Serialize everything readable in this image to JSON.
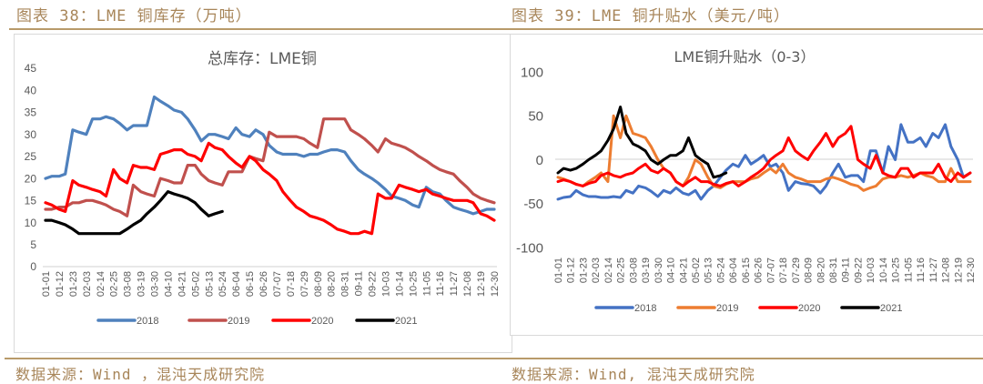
{
  "left": {
    "figure_title": "图表 38：LME 铜库存（万吨）",
    "source": "数据来源：Wind ，混沌天成研究院"
  },
  "right": {
    "figure_title": "图表 39：LME 铜升贴水（美元/吨）",
    "source": "数据来源：Wind, 混沌天成研究院"
  },
  "chart_data": [
    {
      "type": "line",
      "title": "总库存：LME铜",
      "xlabel": "",
      "ylabel": "",
      "ylim": [
        0,
        45
      ],
      "yticks": [
        "0",
        "5",
        "10",
        "15",
        "20",
        "25",
        "30",
        "35",
        "40",
        "45"
      ],
      "xticks": [
        "01-01",
        "01-12",
        "01-23",
        "02-03",
        "02-14",
        "02-25",
        "03-08",
        "03-19",
        "03-30",
        "04-10",
        "04-21",
        "05-02",
        "05-13",
        "05-24",
        "06-04",
        "06-15",
        "06-26",
        "07-07",
        "07-18",
        "07-29",
        "08-09",
        "08-20",
        "08-31",
        "09-11",
        "09-22",
        "10-03",
        "10-14",
        "10-25",
        "11-05",
        "11-16",
        "11-27",
        "12-08",
        "12-19",
        "12-30"
      ],
      "grid": false,
      "legend": "bottom",
      "x": [
        "01-01",
        "01-06",
        "01-12",
        "01-17",
        "01-23",
        "01-28",
        "02-03",
        "02-08",
        "02-14",
        "02-19",
        "02-25",
        "03-02",
        "03-08",
        "03-13",
        "03-19",
        "03-24",
        "03-30",
        "04-04",
        "04-10",
        "04-15",
        "04-21",
        "04-26",
        "05-02",
        "05-07",
        "05-13",
        "05-18",
        "05-24",
        "05-29",
        "06-04",
        "06-09",
        "06-15",
        "06-20",
        "06-26",
        "07-01",
        "07-07",
        "07-12",
        "07-18",
        "07-23",
        "07-29",
        "08-03",
        "08-09",
        "08-14",
        "08-20",
        "08-25",
        "08-31",
        "09-05",
        "09-11",
        "09-16",
        "09-22",
        "09-27",
        "10-03",
        "10-08",
        "10-14",
        "10-19",
        "10-25",
        "10-30",
        "11-05",
        "11-10",
        "11-16",
        "11-21",
        "11-27",
        "12-02",
        "12-08",
        "12-13",
        "12-19",
        "12-24",
        "12-30"
      ],
      "series": [
        {
          "name": "2018",
          "color": "#4f81bd",
          "values": [
            20,
            20.5,
            20.5,
            21,
            31,
            30.5,
            30,
            33.5,
            33.5,
            34,
            33.5,
            32.5,
            31,
            32,
            32,
            32,
            38.5,
            37.5,
            36.5,
            35.5,
            35,
            33.5,
            31,
            28.5,
            30,
            30,
            29.5,
            29,
            31.5,
            30,
            29.5,
            31,
            30,
            27.5,
            26,
            25.5,
            25.5,
            25.5,
            25,
            25.5,
            25.5,
            26,
            26.5,
            26.5,
            26,
            24,
            22,
            21,
            20,
            19,
            17.5,
            16,
            15.5,
            15,
            14,
            13.5,
            18,
            17,
            16.5,
            15,
            13.5,
            13,
            12.5,
            12,
            12.5,
            13,
            13
          ]
        },
        {
          "name": "2019",
          "color": "#c0504d",
          "values": [
            13,
            13,
            13.5,
            13.5,
            14.5,
            14.5,
            15,
            15,
            14.5,
            14,
            13,
            12.5,
            11.5,
            18.5,
            17,
            16.5,
            16,
            20,
            19.5,
            19,
            19,
            23,
            23,
            21,
            19.5,
            19,
            18.5,
            21.5,
            21.5,
            21.5,
            25,
            24.5,
            24,
            30.5,
            29.5,
            29.5,
            29.5,
            29.5,
            29,
            28,
            27,
            33.5,
            33.5,
            33.5,
            33.5,
            31,
            30,
            29,
            27.5,
            26,
            29,
            28,
            27.5,
            27,
            26,
            25,
            24,
            23,
            22,
            21.5,
            21,
            19.5,
            18,
            16.5,
            15.5,
            15,
            14.5
          ]
        },
        {
          "name": "2020",
          "color": "#ff0000",
          "values": [
            14.5,
            14,
            13,
            12.5,
            19.5,
            18.5,
            18,
            17.5,
            17,
            16,
            22,
            20,
            19,
            23,
            22.5,
            22.5,
            22,
            25.5,
            26,
            26.5,
            26.5,
            25.5,
            25,
            24,
            28,
            27,
            26.5,
            25,
            23.5,
            22.5,
            25,
            24,
            22,
            21,
            19.5,
            17,
            15,
            13.5,
            12.5,
            11.5,
            11,
            10.5,
            9.5,
            8.5,
            8,
            7.5,
            7.5,
            8,
            7.5,
            16.5,
            15.5,
            15.5,
            18.5,
            18,
            17.5,
            17,
            17.5,
            16.5,
            16,
            15.5,
            15,
            15,
            15,
            14.5,
            12,
            11.5,
            10.5
          ]
        },
        {
          "name": "2021",
          "color": "#000000",
          "values": [
            10.5,
            10.5,
            10,
            9.5,
            8.5,
            7.5,
            7.5,
            7.5,
            7.5,
            7.5,
            7.5,
            7.5,
            8.5,
            9.5,
            10.5,
            12,
            13.5,
            15,
            17,
            16.5,
            16,
            15.5,
            14.5,
            13,
            11.5,
            12,
            12.5,
            null,
            null,
            null,
            null,
            null,
            null,
            null,
            null,
            null,
            null,
            null,
            null,
            null,
            null,
            null,
            null,
            null,
            null,
            null,
            null,
            null,
            null,
            null,
            null,
            null,
            null,
            null,
            null,
            null,
            null,
            null,
            null,
            null,
            null,
            null,
            null,
            null,
            null,
            null,
            null
          ]
        }
      ]
    },
    {
      "type": "line",
      "title": "LME铜升贴水（0-3）",
      "xlabel": "",
      "ylabel": "",
      "ylim": [
        -100,
        100
      ],
      "yticks": [
        "-100",
        "-50",
        "0",
        "50",
        "100"
      ],
      "xticks": [
        "01-01",
        "01-12",
        "01-23",
        "02-03",
        "02-14",
        "02-25",
        "03-08",
        "03-19",
        "03-30",
        "04-10",
        "04-21",
        "05-02",
        "05-13",
        "05-24",
        "06-04",
        "06-15",
        "06-26",
        "07-07",
        "07-18",
        "07-29",
        "08-09",
        "08-20",
        "08-31",
        "09-11",
        "09-22",
        "10-03",
        "10-14",
        "10-25",
        "11-05",
        "11-16",
        "11-27",
        "12-08",
        "12-19",
        "12-30"
      ],
      "grid": false,
      "legend": "bottom",
      "x": [
        "01-01",
        "01-06",
        "01-12",
        "01-17",
        "01-23",
        "01-28",
        "02-03",
        "02-08",
        "02-14",
        "02-19",
        "02-25",
        "03-02",
        "03-08",
        "03-13",
        "03-19",
        "03-24",
        "03-30",
        "04-04",
        "04-10",
        "04-15",
        "04-21",
        "04-26",
        "05-02",
        "05-07",
        "05-13",
        "05-18",
        "05-24",
        "05-29",
        "06-04",
        "06-09",
        "06-15",
        "06-20",
        "06-26",
        "07-01",
        "07-07",
        "07-12",
        "07-18",
        "07-23",
        "07-29",
        "08-03",
        "08-09",
        "08-14",
        "08-20",
        "08-25",
        "08-31",
        "09-05",
        "09-11",
        "09-16",
        "09-22",
        "09-27",
        "10-03",
        "10-08",
        "10-14",
        "10-19",
        "10-25",
        "10-30",
        "11-05",
        "11-10",
        "11-16",
        "11-21",
        "11-27",
        "12-02",
        "12-08",
        "12-13",
        "12-19",
        "12-24",
        "12-30"
      ],
      "series": [
        {
          "name": "2018",
          "color": "#4472c4",
          "values": [
            -45,
            -43,
            -42,
            -35,
            -40,
            -42,
            -42,
            -43,
            -43,
            -42,
            -43,
            -35,
            -38,
            -30,
            -32,
            -36,
            -42,
            -35,
            -38,
            -32,
            -38,
            -40,
            -35,
            -45,
            -35,
            -30,
            -20,
            -12,
            -5,
            -8,
            5,
            -5,
            0,
            5,
            -8,
            -5,
            -15,
            -35,
            -25,
            -27,
            -28,
            -30,
            -38,
            -30,
            -15,
            -5,
            -20,
            -18,
            -18,
            -25,
            10,
            10,
            -15,
            15,
            0,
            40,
            20,
            20,
            25,
            15,
            30,
            25,
            40,
            15,
            0,
            -20,
            -15
          ]
        },
        {
          "name": "2019",
          "color": "#ed7d31",
          "values": [
            -20,
            -22,
            -25,
            -28,
            -30,
            -25,
            -20,
            -15,
            -25,
            50,
            25,
            50,
            30,
            28,
            25,
            15,
            0,
            -10,
            -15,
            -25,
            -30,
            -20,
            0,
            -5,
            -20,
            -30,
            -32,
            -28,
            -25,
            -25,
            -25,
            -22,
            -20,
            -15,
            -10,
            -15,
            -5,
            -15,
            -20,
            -22,
            -25,
            -25,
            -25,
            -22,
            -20,
            -22,
            -25,
            -28,
            -30,
            -35,
            -32,
            -30,
            -22,
            -20,
            -20,
            -18,
            -20,
            -18,
            -15,
            -18,
            -20,
            -25,
            -25,
            -10,
            -25,
            -25,
            -25
          ]
        },
        {
          "name": "2020",
          "color": "#ff0000",
          "values": [
            -25,
            -23,
            -25,
            -28,
            -30,
            -27,
            -25,
            -18,
            -15,
            -18,
            -20,
            -17,
            -15,
            -10,
            -5,
            -12,
            -15,
            -10,
            -15,
            -25,
            -30,
            -25,
            -20,
            -25,
            -25,
            -28,
            -30,
            -27,
            -25,
            -30,
            -25,
            -20,
            -15,
            -10,
            0,
            5,
            10,
            25,
            10,
            5,
            0,
            10,
            20,
            30,
            15,
            25,
            30,
            38,
            0,
            -5,
            -10,
            5,
            -15,
            -18,
            -20,
            -10,
            -10,
            -20,
            -15,
            -15,
            -15,
            -5,
            -20,
            -25,
            -15,
            -20,
            -15
          ]
        },
        {
          "name": "2021",
          "color": "#000000",
          "values": [
            -15,
            -10,
            -12,
            -10,
            -5,
            0,
            5,
            10,
            22,
            35,
            60,
            30,
            18,
            15,
            10,
            0,
            -5,
            0,
            5,
            5,
            10,
            25,
            5,
            0,
            -5,
            -20,
            -18,
            -15,
            null,
            null,
            null,
            null,
            null,
            null,
            null,
            null,
            null,
            null,
            null,
            null,
            null,
            null,
            null,
            null,
            null,
            null,
            null,
            null,
            null,
            null,
            null,
            null,
            null,
            null,
            null,
            null,
            null,
            null,
            null,
            null,
            null,
            null,
            null,
            null,
            null,
            null,
            null
          ]
        }
      ]
    }
  ]
}
